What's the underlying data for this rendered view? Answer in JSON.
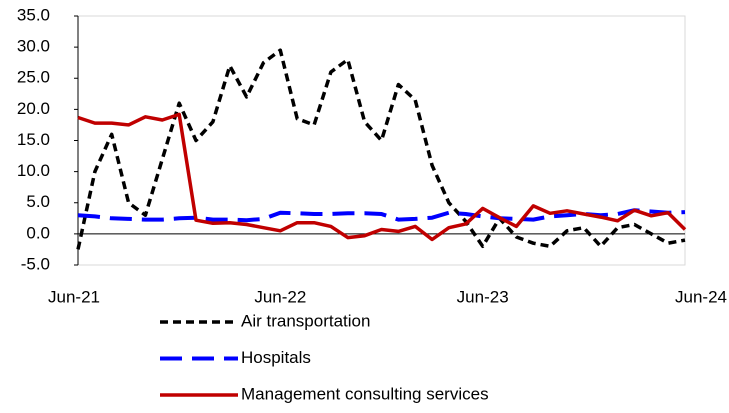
{
  "chart_data": {
    "type": "line",
    "categories": [
      "Jun-21",
      null,
      null,
      null,
      null,
      null,
      null,
      null,
      null,
      null,
      null,
      null,
      "Jun-22",
      null,
      null,
      null,
      null,
      null,
      null,
      null,
      null,
      null,
      null,
      null,
      "Jun-23",
      null,
      null,
      null,
      null,
      null,
      null,
      null,
      null,
      null,
      null,
      null,
      "Jun-24"
    ],
    "series": [
      {
        "name": "Air transportation",
        "color": "#000000",
        "line_style": "dotted",
        "values": [
          -2.5,
          10,
          16,
          5,
          3,
          12,
          21,
          15,
          18,
          27,
          22,
          27.5,
          29.5,
          18.5,
          17.5,
          26,
          28,
          18,
          15,
          24,
          21.5,
          11,
          5,
          2,
          -2,
          2.5,
          -0.5,
          -1.5,
          -2,
          0.5,
          1,
          -2,
          1,
          1.5,
          0,
          -1.5,
          -1
        ]
      },
      {
        "name": "Hospitals",
        "color": "#0000ff",
        "line_style": "dashed",
        "values": [
          3,
          2.8,
          2.5,
          2.4,
          2.3,
          2.3,
          2.5,
          2.6,
          2.3,
          2.3,
          2.2,
          2.4,
          3.4,
          3.3,
          3.2,
          3.2,
          3.3,
          3.3,
          3.2,
          2.3,
          2.4,
          2.6,
          3.4,
          3.2,
          2.8,
          2.5,
          2.4,
          2.3,
          2.8,
          3.0,
          3.2,
          3.0,
          3.2,
          3.8,
          3.6,
          3.4,
          3.5
        ]
      },
      {
        "name": "Management consulting services",
        "color": "#c00000",
        "line_style": "solid",
        "values": [
          18.7,
          17.8,
          17.8,
          17.5,
          18.8,
          18.3,
          19.2,
          2.2,
          1.7,
          1.8,
          1.5,
          1.0,
          0.5,
          1.8,
          1.8,
          1.2,
          -0.6,
          -0.3,
          0.7,
          0.4,
          1.2,
          -0.9,
          1.0,
          1.6,
          4.1,
          2.6,
          1.2,
          4.5,
          3.3,
          3.7,
          3.2,
          2.7,
          2.1,
          3.8,
          2.9,
          3.4,
          0.7
        ]
      }
    ],
    "ylim": [
      -5,
      35
    ],
    "yticks": [
      {
        "value": -5,
        "label": "-5.0"
      },
      {
        "value": 0,
        "label": "0.0"
      },
      {
        "value": 5,
        "label": "5.0"
      },
      {
        "value": 10,
        "label": "10.0"
      },
      {
        "value": 15,
        "label": "15.0"
      },
      {
        "value": 20,
        "label": "20.0"
      },
      {
        "value": 25,
        "label": "25.0"
      },
      {
        "value": 30,
        "label": "30.0"
      },
      {
        "value": 35,
        "label": "35.0"
      }
    ],
    "grid": false,
    "legend": "bottom"
  }
}
